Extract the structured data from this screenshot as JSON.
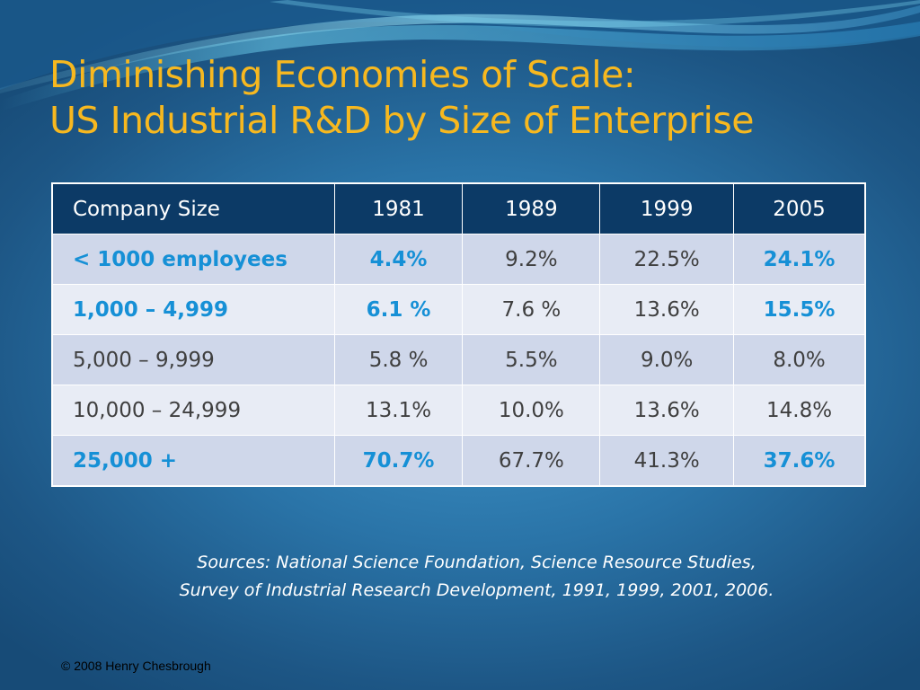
{
  "slide": {
    "title_line1": "Diminishing Economies of Scale:",
    "title_line2": "US Industrial R&D by Size of Enterprise",
    "colors": {
      "title": "#f7b81f",
      "header_bg": "#0c3a66",
      "highlight_text": "#1690d6",
      "row_odd": "#cfd7ea",
      "row_even": "#e8ecf5"
    }
  },
  "table": {
    "headers": [
      "Company Size",
      "1981",
      "1989",
      "1999",
      "2005"
    ],
    "rows": [
      {
        "cells": [
          "< 1000 employees",
          "4.4%",
          "9.2%",
          "22.5%",
          "24.1%"
        ],
        "highlight": [
          0,
          1,
          4
        ]
      },
      {
        "cells": [
          "1,000 – 4,999",
          "6.1 %",
          "7.6 %",
          "13.6%",
          "15.5%"
        ],
        "highlight": [
          0,
          1,
          4
        ]
      },
      {
        "cells": [
          "5,000 – 9,999",
          "5.8 %",
          "5.5%",
          "9.0%",
          "8.0%"
        ],
        "highlight": []
      },
      {
        "cells": [
          "10,000 – 24,999",
          "13.1%",
          "10.0%",
          "13.6%",
          "14.8%"
        ],
        "highlight": []
      },
      {
        "cells": [
          "25,000 +",
          "70.7%",
          "67.7%",
          "41.3%",
          "37.6%"
        ],
        "highlight": [
          0,
          1,
          4
        ]
      }
    ]
  },
  "sources": {
    "line1": "Sources:  National Science Foundation, Science Resource Studies,",
    "line2": "Survey of Industrial Research Development, 1991, 1999, 2001, 2006."
  },
  "footer": {
    "copyright": "© 2008 Henry Chesbrough"
  }
}
